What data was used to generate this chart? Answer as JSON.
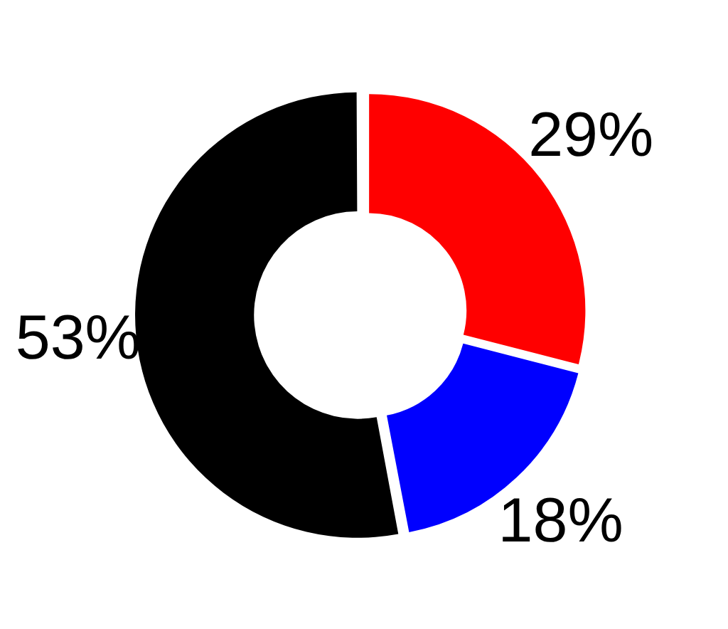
{
  "chart_data": {
    "type": "donut",
    "categories": [
      null,
      null,
      null
    ],
    "values": [
      29,
      18,
      53
    ],
    "colors": [
      "#ff0000",
      "#0000ff",
      "#000000"
    ],
    "value_labels": [
      "29%",
      "18%",
      "53%"
    ],
    "legend": false
  }
}
